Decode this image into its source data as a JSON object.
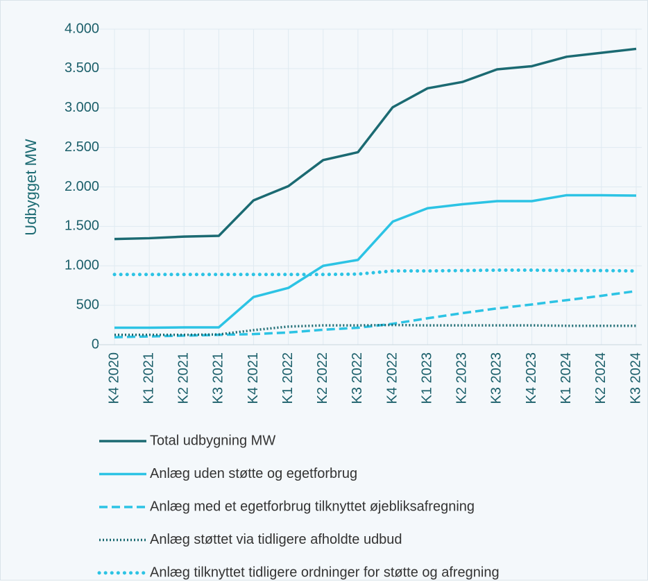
{
  "chart_data": {
    "type": "line",
    "y_label": "Udbygget MW",
    "categories": [
      "K4 2020",
      "K1 2021",
      "K2 2021",
      "K3 2021",
      "K4 2021",
      "K1 2022",
      "K2 2022",
      "K3 2022",
      "K4 2022",
      "K1 2023",
      "K2 2023",
      "K3 2023",
      "K4 2023",
      "K1 2024",
      "K2 2024",
      "K3 2024"
    ],
    "series": [
      {
        "name": "Total udbygning MW",
        "color": "#1b6a72",
        "dash": "solid",
        "values": [
          1340,
          1350,
          1370,
          1380,
          1830,
          2010,
          2340,
          2440,
          3010,
          3250,
          3330,
          3490,
          3530,
          3650,
          3700,
          3750
        ]
      },
      {
        "name": "Anlæg uden støtte og egetforbrug",
        "color": "#2cc3e4",
        "dash": "solid",
        "values": [
          215,
          215,
          220,
          220,
          605,
          720,
          1000,
          1075,
          1560,
          1730,
          1780,
          1820,
          1820,
          1895,
          1895,
          1890
        ]
      },
      {
        "name": "Anlæg med et egetforbrug tilknyttet øjebliksafregning",
        "color": "#2cc3e4",
        "dash": "dashed",
        "values": [
          95,
          105,
          115,
          125,
          135,
          155,
          190,
          215,
          265,
          335,
          400,
          460,
          510,
          565,
          620,
          680
        ]
      },
      {
        "name": "Anlæg støttet via tidligere afholdte udbud",
        "color": "#1b6a72",
        "dash": "dotted",
        "values": [
          125,
          125,
          125,
          130,
          185,
          230,
          245,
          245,
          250,
          245,
          245,
          245,
          245,
          240,
          240,
          240
        ]
      },
      {
        "name": "Anlæg tilknyttet tidligere ordninger for støtte og afregning",
        "color": "#2cc3e4",
        "dash": "round-dotted",
        "values": [
          890,
          890,
          890,
          890,
          890,
          890,
          890,
          895,
          935,
          935,
          940,
          945,
          945,
          940,
          940,
          935
        ]
      }
    ],
    "ylim": [
      0,
      4000
    ],
    "yticks": [
      0,
      500,
      {
        "value": 1000,
        "label": "1.000"
      },
      {
        "value": 1500,
        "label": "1.500"
      },
      {
        "value": 2000,
        "label": "2.000"
      },
      {
        "value": 2500,
        "label": "2.500"
      },
      {
        "value": 3000,
        "label": "3.000"
      },
      {
        "value": 3500,
        "label": "3.500"
      },
      {
        "value": 4000,
        "label": "4.000"
      }
    ],
    "grid": true,
    "legend": "bottom"
  }
}
